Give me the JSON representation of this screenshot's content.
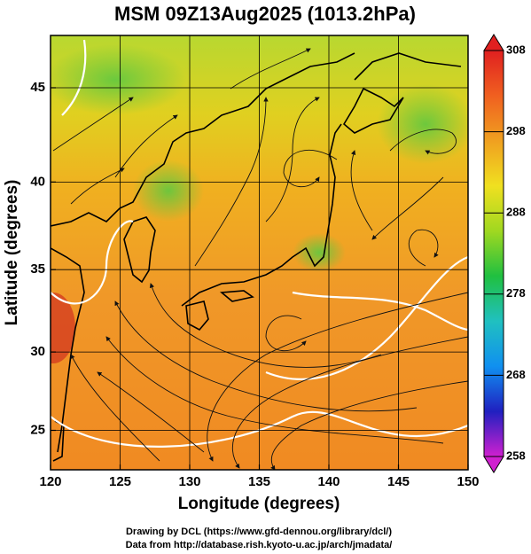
{
  "title": "MSM 09Z13Aug2025 (1013.2hPa)",
  "map": {
    "projection": "mercator",
    "xlabel": "Longitude (degrees)",
    "ylabel": "Latitude  (degrees)",
    "xlim": [
      120,
      150
    ],
    "ylim": [
      22.4,
      47.6
    ],
    "xticks": [
      120,
      125,
      130,
      135,
      140,
      145,
      150
    ],
    "yticks": [
      25,
      30,
      35,
      40,
      45
    ],
    "grid": true
  },
  "colorbar": {
    "lim": [
      258,
      308
    ],
    "ticks": [
      308,
      298,
      288,
      278,
      268,
      258
    ],
    "colors": [
      "#d020d0",
      "#2020c0",
      "#1090f0",
      "#20c0c0",
      "#20c040",
      "#a0d820",
      "#f0e020",
      "#f0a020",
      "#f06020",
      "#e02020"
    ]
  },
  "footer": [
    "Drawing by DCL (https://www.gfd-dennou.org/library/dcl/)",
    "Data from http://database.rish.kyoto-u.ac.jp/arch/jmadata/"
  ]
}
